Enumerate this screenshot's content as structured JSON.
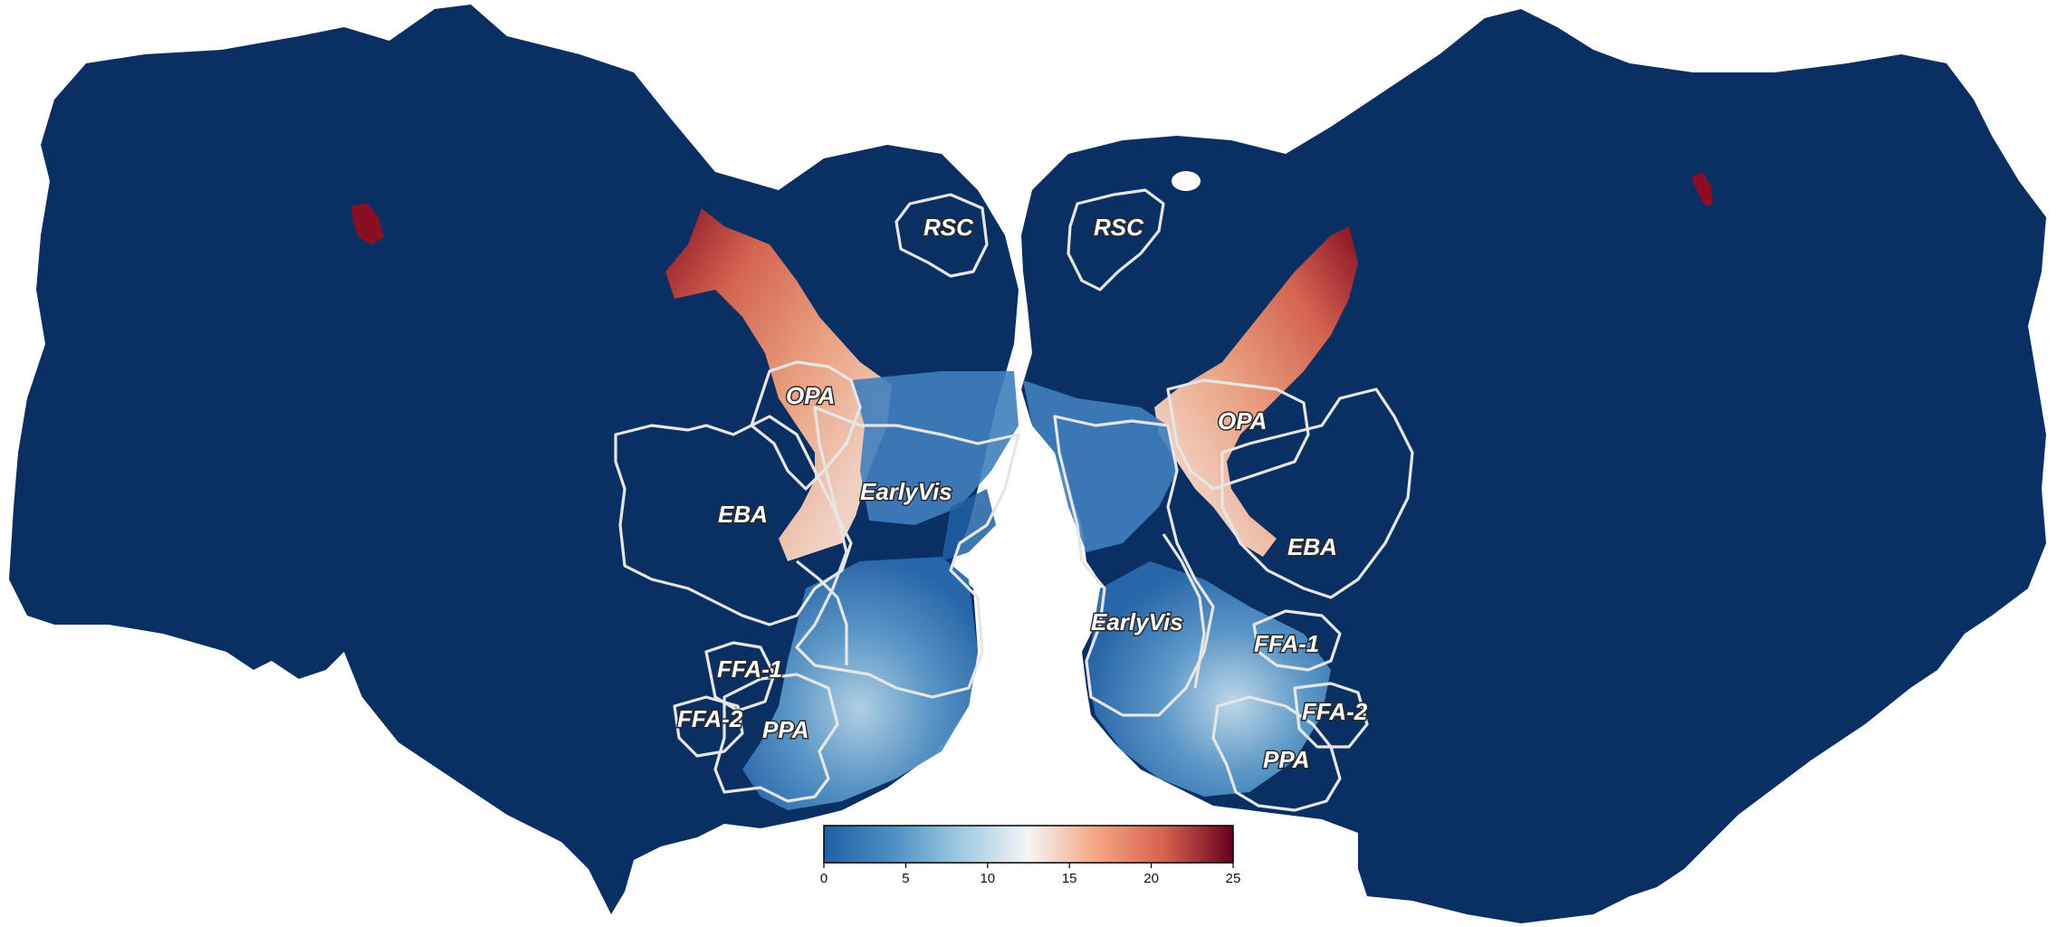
{
  "figure": {
    "hemispheres": [
      "left",
      "right"
    ],
    "surface_color": "#0a2f63"
  },
  "roi_labels": {
    "left": [
      "RSC",
      "OPA",
      "EarlyVis",
      "EBA",
      "FFA-1",
      "FFA-2",
      "PPA"
    ],
    "right": [
      "RSC",
      "OPA",
      "EarlyVis",
      "EBA",
      "FFA-1",
      "FFA-2",
      "PPA"
    ]
  },
  "colorbar": {
    "colormap": "RdBu_r",
    "colors": [
      "#1f5fa6",
      "#4b8fc4",
      "#9ecae1",
      "#f5f5f5",
      "#f4a582",
      "#d6604d",
      "#67001f"
    ],
    "min": 0,
    "max": 25,
    "ticks": [
      "0",
      "5",
      "10",
      "15",
      "20",
      "25"
    ]
  }
}
